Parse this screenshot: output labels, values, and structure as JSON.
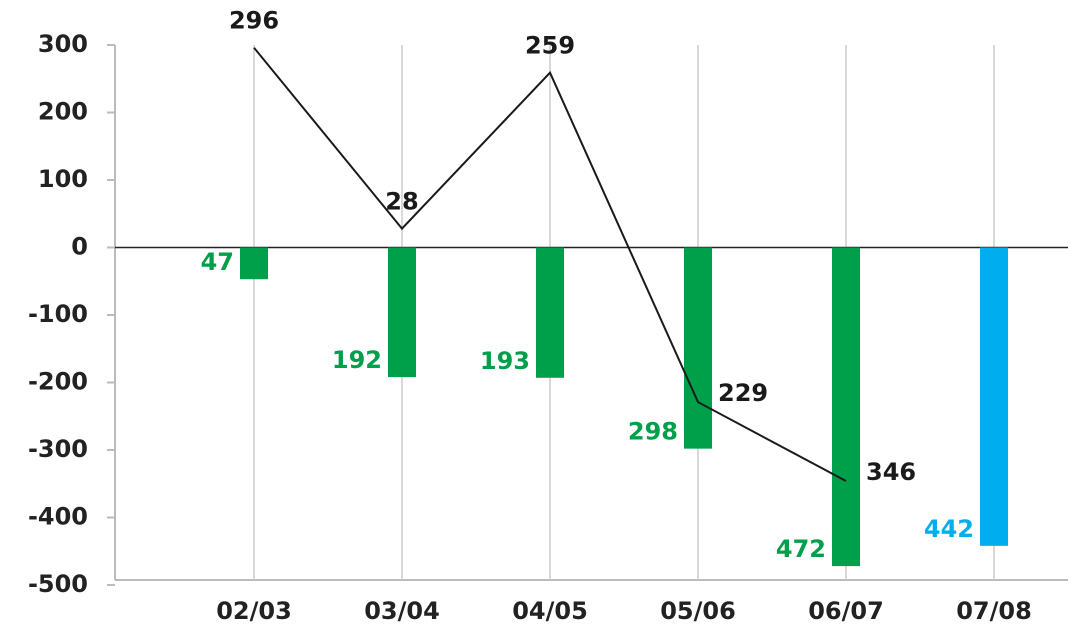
{
  "chart_data": {
    "type": "bar",
    "categories": [
      "02/03",
      "03/04",
      "04/05",
      "05/06",
      "06/07",
      "07/08"
    ],
    "series": [
      {
        "type": "bar",
        "colors": [
          "#00a04b",
          "#00a04b",
          "#00a04b",
          "#00a04b",
          "#00a04b",
          "#00aeef"
        ],
        "values": [
          -47,
          -192,
          -193,
          -298,
          -472,
          -442
        ],
        "value_labels": [
          "47",
          "192",
          "193",
          "298",
          "472",
          "442"
        ]
      },
      {
        "type": "line",
        "color": "#1a1a1a",
        "values": [
          296,
          28,
          259,
          -229,
          -346,
          null
        ],
        "value_labels": [
          "296",
          "28",
          "259",
          "229",
          "346",
          null
        ]
      }
    ],
    "ylim": [
      -500,
      300
    ],
    "yticks": [
      -500,
      -400,
      -300,
      -200,
      -100,
      0,
      100,
      200,
      300
    ],
    "grid": true
  }
}
